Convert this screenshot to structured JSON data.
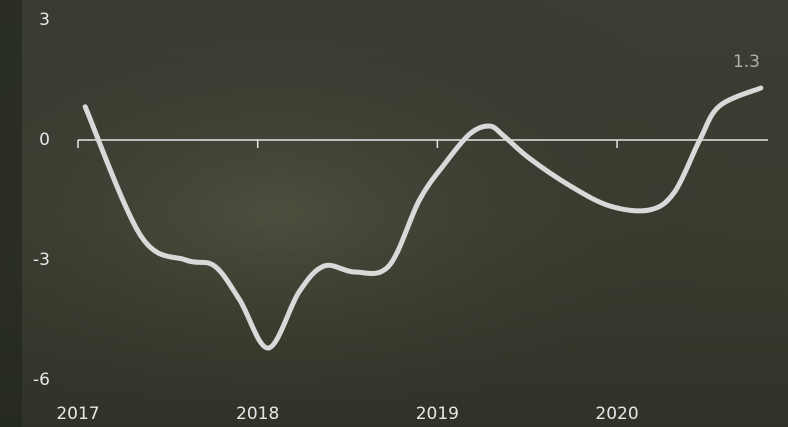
{
  "chart_data": {
    "type": "line",
    "x": [
      2017.04,
      2017.35,
      2017.6,
      2017.76,
      2017.9,
      2018.06,
      2018.23,
      2018.37,
      2018.54,
      2018.73,
      2018.9,
      2019.04,
      2019.18,
      2019.29,
      2019.37,
      2019.51,
      2019.74,
      2019.96,
      2020.18,
      2020.32,
      2020.46,
      2020.57,
      2020.8
    ],
    "series": [
      {
        "color": "#d9d9d9",
        "values": [
          0.83,
          -2.4,
          -3.0,
          -3.15,
          -4.0,
          -5.2,
          -3.8,
          -3.15,
          -3.3,
          -3.15,
          -1.5,
          -0.6,
          0.15,
          0.35,
          0.1,
          -0.45,
          -1.15,
          -1.65,
          -1.75,
          -1.3,
          0.0,
          0.85,
          1.3
        ]
      }
    ],
    "xlim": [
      2017,
      2020.84
    ],
    "xticks": [
      2017,
      2018,
      2019,
      2020
    ],
    "ylim": [
      -6,
      3
    ],
    "yticks": [
      3,
      0,
      -3,
      -6
    ]
  }
}
